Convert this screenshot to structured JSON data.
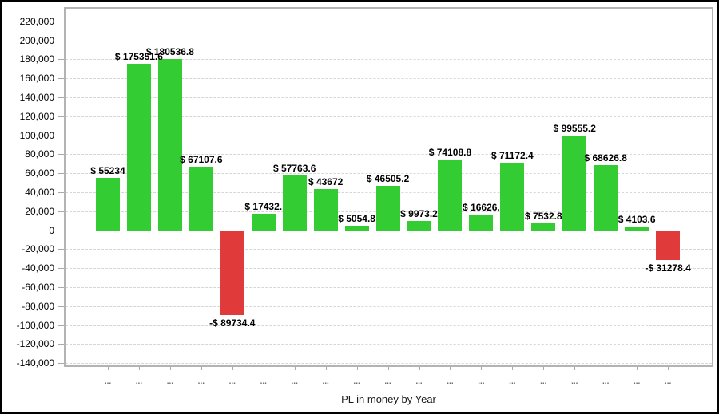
{
  "chart_data": {
    "type": "bar",
    "title": "",
    "xlabel": "PL in money by Year",
    "ylabel": "",
    "grid": "horizontal-dashed",
    "legend": "none",
    "ylim": [
      -144000,
      235000
    ],
    "categories": [
      "...",
      "...",
      "...",
      "...",
      "...",
      "...",
      "...",
      "...",
      "...",
      "...",
      "...",
      "...",
      "...",
      "...",
      "...",
      "...",
      "...",
      "...",
      "..."
    ],
    "bars": [
      {
        "value": 55234,
        "label": "$ 55234"
      },
      {
        "value": 175351.6,
        "label": "$ 175351.6"
      },
      {
        "value": 180536.8,
        "label": "$ 180536.8"
      },
      {
        "value": 67107.6,
        "label": "$ 67107.6"
      },
      {
        "value": -89734.4,
        "label": "-$ 89734.4"
      },
      {
        "value": 17432,
        "label": "$ 17432."
      },
      {
        "value": 57763.6,
        "label": "$ 57763.6"
      },
      {
        "value": 43672,
        "label": "$ 43672"
      },
      {
        "value": 5054.8,
        "label": "$ 5054.8"
      },
      {
        "value": 46505.2,
        "label": "$ 46505.2"
      },
      {
        "value": 9973.2,
        "label": "$ 9973.2"
      },
      {
        "value": 74108.8,
        "label": "$ 74108.8"
      },
      {
        "value": 16626,
        "label": "$ 16626."
      },
      {
        "value": 71172.4,
        "label": "$ 71172.4"
      },
      {
        "value": 7532.8,
        "label": "$ 7532.8"
      },
      {
        "value": 99555.2,
        "label": "$ 99555.2"
      },
      {
        "value": 68626.8,
        "label": "$ 68626.8"
      },
      {
        "value": 4103.6,
        "label": "$ 4103.6"
      },
      {
        "value": -31278.4,
        "label": "-$ 31278.4"
      }
    ],
    "y_ticks": [
      {
        "value": 220000,
        "label": "220,000"
      },
      {
        "value": 200000,
        "label": "200,000"
      },
      {
        "value": 180000,
        "label": "180,000"
      },
      {
        "value": 160000,
        "label": "160,000"
      },
      {
        "value": 140000,
        "label": "140,000"
      },
      {
        "value": 120000,
        "label": "120,000"
      },
      {
        "value": 100000,
        "label": "100,000"
      },
      {
        "value": 80000,
        "label": "80,000"
      },
      {
        "value": 60000,
        "label": "60,000"
      },
      {
        "value": 40000,
        "label": "40,000"
      },
      {
        "value": 20000,
        "label": "20,000"
      },
      {
        "value": 0,
        "label": "0"
      },
      {
        "value": -20000,
        "label": "-20,000"
      },
      {
        "value": -40000,
        "label": "-40,000"
      },
      {
        "value": -60000,
        "label": "-60,000"
      },
      {
        "value": -80000,
        "label": "-80,000"
      },
      {
        "value": -100000,
        "label": "-100,000"
      },
      {
        "value": -120000,
        "label": "-120,000"
      },
      {
        "value": -140000,
        "label": "-140,000"
      }
    ],
    "colors": {
      "positive": "#33cc33",
      "negative": "#e03a3a",
      "grid": "#d6d6d6",
      "plot_border": "#b3b3b3",
      "tick": "#a9a9a9",
      "axis_text": "#000000",
      "x_tick_text": "#6e6e6e",
      "outer_border": "#000000"
    }
  }
}
